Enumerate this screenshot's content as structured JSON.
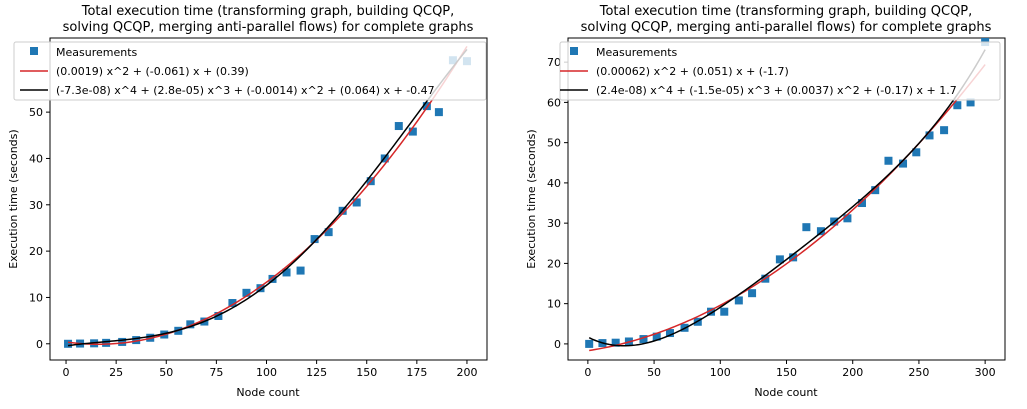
{
  "chart_data": [
    {
      "type": "scatter",
      "title_line1": "Total execution time (transforming graph, building QCQP,",
      "title_line2": "solving QCQP, merging anti-parallel flows) for complete graphs",
      "xlabel": "Node count",
      "ylabel": "Execution time (seconds)",
      "xlim": [
        -8,
        210
      ],
      "ylim": [
        -3.5,
        66
      ],
      "xticks": [
        0,
        25,
        50,
        75,
        100,
        125,
        150,
        175,
        200
      ],
      "yticks": [
        0,
        10,
        20,
        30,
        40,
        50
      ],
      "grid": false,
      "legend_position": "top-left",
      "colors": {
        "scatter": "#1f77b4",
        "fit2": "#d62728",
        "fit4": "#000000"
      },
      "series": [
        {
          "name": "Measurements",
          "kind": "scatter",
          "x": [
            1,
            7,
            14,
            20,
            28,
            35,
            42,
            49,
            56,
            62,
            69,
            76,
            83,
            90,
            97,
            103,
            110,
            117,
            124,
            131,
            138,
            145,
            152,
            159,
            166,
            173,
            180,
            186,
            193,
            200
          ],
          "y": [
            0.0,
            0.05,
            0.1,
            0.2,
            0.4,
            0.8,
            1.3,
            2.0,
            2.8,
            4.2,
            4.8,
            6.0,
            8.8,
            11.0,
            12.0,
            14.0,
            15.4,
            15.8,
            22.6,
            24.1,
            28.7,
            30.5,
            35.1,
            40.0,
            47.0,
            45.8,
            51.3,
            50.0,
            61.2,
            61.0
          ]
        },
        {
          "name": "(0.0019) x^2 + (-0.061) x + (0.39)",
          "kind": "poly",
          "coeffs": [
            0.0019,
            -0.061,
            0.39
          ]
        },
        {
          "name": "(-7.3e-08) x^4 + (2.8e-05) x^3 + (-0.0014) x^2 + (0.064) x + -0.47",
          "kind": "poly",
          "coeffs": [
            -7.3e-08,
            2.8e-05,
            -0.0014,
            0.064,
            -0.47
          ]
        }
      ]
    },
    {
      "type": "scatter",
      "title_line1": "Total execution time (transforming graph, building QCQP,",
      "title_line2": "solving QCQP, merging anti-parallel flows) for complete graphs",
      "xlabel": "Node count",
      "ylabel": "Execution time (seconds)",
      "xlim": [
        -15,
        315
      ],
      "ylim": [
        -4,
        76
      ],
      "xticks": [
        0,
        50,
        100,
        150,
        200,
        250,
        300
      ],
      "yticks": [
        0,
        10,
        20,
        30,
        40,
        50,
        60,
        70
      ],
      "grid": false,
      "legend_position": "top-left",
      "colors": {
        "scatter": "#1f77b4",
        "fit2": "#d62728",
        "fit4": "#000000"
      },
      "series": [
        {
          "name": "Measurements",
          "kind": "scatter",
          "x": [
            1,
            11,
            21,
            31,
            42,
            52,
            62,
            73,
            83,
            93,
            103,
            114,
            124,
            134,
            145,
            155,
            165,
            176,
            186,
            196,
            207,
            217,
            227,
            238,
            248,
            258,
            269,
            279,
            289,
            300
          ],
          "y": [
            0.0,
            0.2,
            0.3,
            0.6,
            1.2,
            1.8,
            2.7,
            4.0,
            5.5,
            8.0,
            8.0,
            10.8,
            12.6,
            16.2,
            21.0,
            21.5,
            29.0,
            28.0,
            30.4,
            31.2,
            35.0,
            38.2,
            45.5,
            44.8,
            47.6,
            51.8,
            53.1,
            59.3,
            60.0,
            75.0
          ]
        },
        {
          "name": "(0.00062) x^2 + (0.051) x + (-1.7)",
          "kind": "poly",
          "coeffs": [
            0.00062,
            0.051,
            -1.7
          ]
        },
        {
          "name": "(2.4e-08) x^4 + (-1.5e-05) x^3 + (0.0037) x^2 + (-0.17) x + 1.7",
          "kind": "poly",
          "coeffs": [
            2.4e-08,
            -1.5e-05,
            0.0037,
            -0.17,
            1.7
          ]
        }
      ]
    }
  ]
}
